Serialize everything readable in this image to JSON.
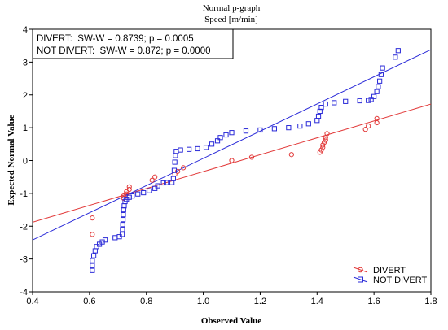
{
  "chart_data": {
    "type": "scatter",
    "title": "Normal p-graph",
    "subtitle": "Speed [m/min]",
    "xlabel": "Observed Value",
    "ylabel": "Expected Normal Value",
    "xlim": [
      0.4,
      1.8
    ],
    "ylim": [
      -4,
      4
    ],
    "x_ticks": [
      "0.4",
      "0.6",
      "0.8",
      "1.0",
      "1.2",
      "1.4",
      "1.6",
      "1.8"
    ],
    "y_ticks": [
      "-4",
      "-3",
      "-2",
      "-1",
      "0",
      "1",
      "2",
      "3",
      "4"
    ],
    "grid": false,
    "legend_position": "bottom-right",
    "stats": [
      "DIVERT:  SW-W = 0.8739; p = 0.0005",
      "NOT DIVERT:  SW-W = 0.872; p = 0.0000"
    ],
    "series": [
      {
        "name": "DIVERT",
        "marker": "circle",
        "color": "#e23a3a",
        "fit_line": [
          [
            0.4,
            -1.88
          ],
          [
            1.8,
            1.72
          ]
        ],
        "points": [
          [
            0.61,
            -2.25
          ],
          [
            0.61,
            -1.75
          ],
          [
            0.72,
            -1.15
          ],
          [
            0.72,
            -1.08
          ],
          [
            0.73,
            -1.02
          ],
          [
            0.73,
            -0.95
          ],
          [
            0.74,
            -0.88
          ],
          [
            0.74,
            -0.8
          ],
          [
            0.82,
            -0.6
          ],
          [
            0.83,
            -0.5
          ],
          [
            0.9,
            -0.42
          ],
          [
            0.91,
            -0.33
          ],
          [
            0.93,
            -0.22
          ],
          [
            1.1,
            0.0
          ],
          [
            1.17,
            0.1
          ],
          [
            1.31,
            0.18
          ],
          [
            1.41,
            0.25
          ],
          [
            1.415,
            0.32
          ],
          [
            1.42,
            0.4
          ],
          [
            1.42,
            0.47
          ],
          [
            1.425,
            0.55
          ],
          [
            1.43,
            0.62
          ],
          [
            1.43,
            0.7
          ],
          [
            1.435,
            0.82
          ],
          [
            1.57,
            0.95
          ],
          [
            1.58,
            1.05
          ],
          [
            1.61,
            1.15
          ],
          [
            1.61,
            1.28
          ]
        ]
      },
      {
        "name": "NOT DIVERT",
        "marker": "square",
        "color": "#2a2ad8",
        "fit_line": [
          [
            0.4,
            -2.42
          ],
          [
            1.8,
            3.38
          ]
        ],
        "points": [
          [
            0.61,
            -3.35
          ],
          [
            0.61,
            -3.2
          ],
          [
            0.61,
            -3.05
          ],
          [
            0.615,
            -2.9
          ],
          [
            0.62,
            -2.75
          ],
          [
            0.625,
            -2.62
          ],
          [
            0.635,
            -2.55
          ],
          [
            0.645,
            -2.48
          ],
          [
            0.655,
            -2.42
          ],
          [
            0.69,
            -2.35
          ],
          [
            0.705,
            -2.32
          ],
          [
            0.715,
            -2.25
          ],
          [
            0.716,
            -2.1
          ],
          [
            0.717,
            -1.95
          ],
          [
            0.718,
            -1.8
          ],
          [
            0.719,
            -1.65
          ],
          [
            0.72,
            -1.5
          ],
          [
            0.722,
            -1.38
          ],
          [
            0.725,
            -1.25
          ],
          [
            0.73,
            -1.18
          ],
          [
            0.74,
            -1.12
          ],
          [
            0.75,
            -1.08
          ],
          [
            0.77,
            -1.02
          ],
          [
            0.79,
            -0.98
          ],
          [
            0.81,
            -0.92
          ],
          [
            0.83,
            -0.85
          ],
          [
            0.84,
            -0.77
          ],
          [
            0.86,
            -0.68
          ],
          [
            0.87,
            -0.67
          ],
          [
            0.89,
            -0.67
          ],
          [
            0.895,
            -0.55
          ],
          [
            0.898,
            -0.3
          ],
          [
            0.9,
            -0.05
          ],
          [
            0.902,
            0.15
          ],
          [
            0.905,
            0.28
          ],
          [
            0.92,
            0.32
          ],
          [
            0.95,
            0.34
          ],
          [
            0.98,
            0.36
          ],
          [
            1.01,
            0.4
          ],
          [
            1.03,
            0.5
          ],
          [
            1.05,
            0.6
          ],
          [
            1.06,
            0.7
          ],
          [
            1.08,
            0.78
          ],
          [
            1.1,
            0.85
          ],
          [
            1.15,
            0.9
          ],
          [
            1.2,
            0.93
          ],
          [
            1.25,
            0.97
          ],
          [
            1.3,
            1.0
          ],
          [
            1.34,
            1.05
          ],
          [
            1.37,
            1.12
          ],
          [
            1.4,
            1.22
          ],
          [
            1.405,
            1.35
          ],
          [
            1.41,
            1.5
          ],
          [
            1.415,
            1.62
          ],
          [
            1.43,
            1.72
          ],
          [
            1.46,
            1.76
          ],
          [
            1.5,
            1.8
          ],
          [
            1.55,
            1.82
          ],
          [
            1.58,
            1.83
          ],
          [
            1.59,
            1.86
          ],
          [
            1.6,
            1.95
          ],
          [
            1.61,
            2.1
          ],
          [
            1.615,
            2.25
          ],
          [
            1.62,
            2.42
          ],
          [
            1.625,
            2.62
          ],
          [
            1.63,
            2.82
          ],
          [
            1.675,
            3.15
          ],
          [
            1.685,
            3.35
          ]
        ]
      }
    ]
  }
}
